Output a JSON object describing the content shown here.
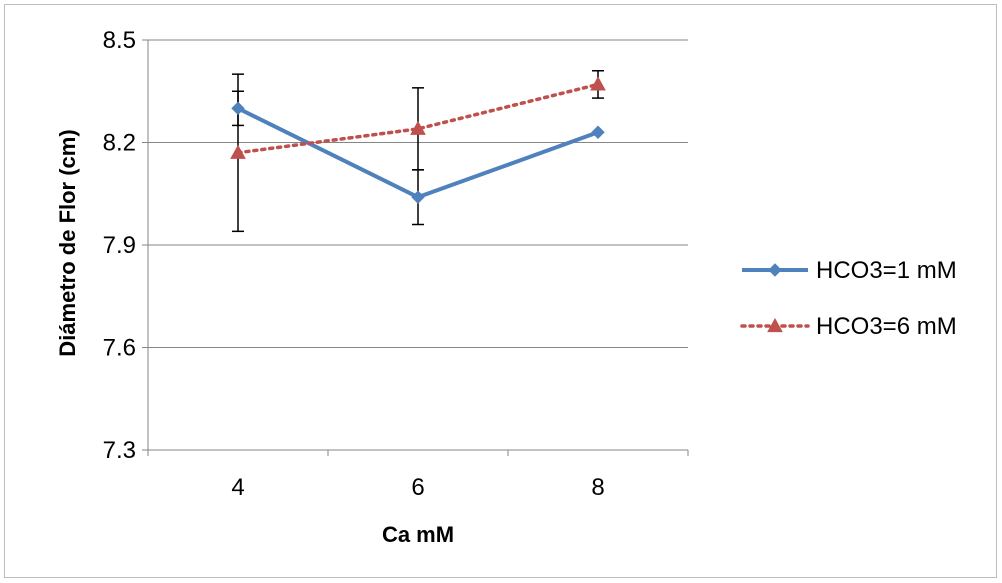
{
  "chart_data": {
    "type": "line",
    "title": "",
    "xlabel": "Ca mM",
    "ylabel": "Diámetro de Flor (cm)",
    "categories": [
      "4",
      "6",
      "8"
    ],
    "ylim": [
      7.3,
      8.5
    ],
    "yticks": [
      "7.3",
      "7.6",
      "7.9",
      "8.2",
      "8.5"
    ],
    "grid": true,
    "legend_position": "right",
    "series": [
      {
        "name": "HCO3=1 mM",
        "values": [
          8.3,
          8.04,
          8.23
        ],
        "errors": [
          0.05,
          0.08,
          0.0
        ],
        "color": "#4f81bd",
        "marker": "diamond",
        "line_style": "solid"
      },
      {
        "name": "HCO3=6 mM",
        "values": [
          8.17,
          8.24,
          8.37
        ],
        "errors": [
          0.23,
          0.12,
          0.04
        ],
        "color": "#c0504d",
        "marker": "triangle",
        "line_style": "dotted"
      }
    ]
  }
}
